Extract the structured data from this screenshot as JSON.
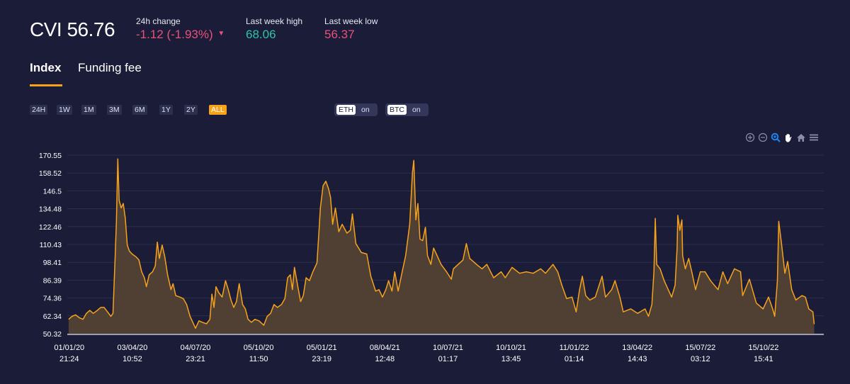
{
  "header": {
    "cvi_label": "CVI",
    "cvi_value": "56.76",
    "change_label": "24h change",
    "change_value": "-1.12 (-1.93%)",
    "change_direction": "down",
    "high_label": "Last week high",
    "high_value": "68.06",
    "low_label": "Last week low",
    "low_value": "56.37"
  },
  "colors": {
    "background": "#1b1c38",
    "accent": "#f7a21b",
    "negative": "#e8527a",
    "positive": "#2ec4a6",
    "area_fill": "#4f4033"
  },
  "tabs": [
    {
      "label": "Index",
      "active": true
    },
    {
      "label": "Funding fee",
      "active": false
    }
  ],
  "ranges": [
    {
      "label": "24H",
      "active": false
    },
    {
      "label": "1W",
      "active": false
    },
    {
      "label": "1M",
      "active": false
    },
    {
      "label": "3M",
      "active": false
    },
    {
      "label": "6M",
      "active": false
    },
    {
      "label": "1Y",
      "active": false
    },
    {
      "label": "2Y",
      "active": false
    },
    {
      "label": "ALL",
      "active": true
    }
  ],
  "toggles": [
    {
      "label": "ETH",
      "state": "on"
    },
    {
      "label": "BTC",
      "state": "on"
    }
  ],
  "toolbar": [
    "zoom-in-icon",
    "zoom-out-icon",
    "zoom-selection-icon",
    "pan-hand-icon",
    "home-reset-icon",
    "menu-icon"
  ],
  "chart_data": {
    "type": "area",
    "title": "",
    "xlabel": "",
    "ylabel": "",
    "grid": true,
    "ylim": [
      50.32,
      170.55
    ],
    "xlim": [
      "2019-12-30",
      "2023-01-12"
    ],
    "y_ticks": [
      "170.55",
      "158.52",
      "146.5",
      "134.48",
      "122.46",
      "110.43",
      "98.41",
      "86.39",
      "74.36",
      "62.34",
      "50.32"
    ],
    "x_ticks": [
      {
        "date": "01/01/20",
        "time": "21:24"
      },
      {
        "date": "03/04/20",
        "time": "10:52"
      },
      {
        "date": "04/07/20",
        "time": "23:21"
      },
      {
        "date": "05/10/20",
        "time": "11:50"
      },
      {
        "date": "05/01/21",
        "time": "23:19"
      },
      {
        "date": "08/04/21",
        "time": "12:48"
      },
      {
        "date": "10/07/21",
        "time": "01:17"
      },
      {
        "date": "10/10/21",
        "time": "13:45"
      },
      {
        "date": "11/01/22",
        "time": "01:14"
      },
      {
        "date": "13/04/22",
        "time": "14:43"
      },
      {
        "date": "15/07/22",
        "time": "03:12"
      },
      {
        "date": "15/10/22",
        "time": "15:41"
      }
    ],
    "series": [
      {
        "points": [
          [
            "2020-01-01",
            60
          ],
          [
            "2020-01-06",
            62
          ],
          [
            "2020-01-11",
            63
          ],
          [
            "2020-01-17",
            61
          ],
          [
            "2020-01-22",
            60
          ],
          [
            "2020-01-27",
            64
          ],
          [
            "2020-02-01",
            66
          ],
          [
            "2020-02-06",
            64
          ],
          [
            "2020-02-12",
            66
          ],
          [
            "2020-02-17",
            68
          ],
          [
            "2020-02-22",
            68
          ],
          [
            "2020-02-27",
            65
          ],
          [
            "2020-03-03",
            62
          ],
          [
            "2020-03-06",
            64
          ],
          [
            "2020-03-09",
            100
          ],
          [
            "2020-03-11",
            125
          ],
          [
            "2020-03-13",
            168
          ],
          [
            "2020-03-15",
            140
          ],
          [
            "2020-03-18",
            135
          ],
          [
            "2020-03-21",
            138
          ],
          [
            "2020-03-24",
            128
          ],
          [
            "2020-03-27",
            110
          ],
          [
            "2020-03-30",
            106
          ],
          [
            "2020-04-03",
            104
          ],
          [
            "2020-04-09",
            102
          ],
          [
            "2020-04-13",
            100
          ],
          [
            "2020-04-17",
            92
          ],
          [
            "2020-04-21",
            88
          ],
          [
            "2020-04-24",
            82
          ],
          [
            "2020-04-28",
            90
          ],
          [
            "2020-05-03",
            92
          ],
          [
            "2020-05-07",
            96
          ],
          [
            "2020-05-10",
            112
          ],
          [
            "2020-05-13",
            101
          ],
          [
            "2020-05-17",
            110
          ],
          [
            "2020-05-21",
            102
          ],
          [
            "2020-05-25",
            90
          ],
          [
            "2020-05-30",
            80
          ],
          [
            "2020-06-02",
            84
          ],
          [
            "2020-06-06",
            76
          ],
          [
            "2020-06-12",
            75
          ],
          [
            "2020-06-17",
            74
          ],
          [
            "2020-06-22",
            70
          ],
          [
            "2020-06-27",
            62
          ],
          [
            "2020-07-01",
            58
          ],
          [
            "2020-07-05",
            54
          ],
          [
            "2020-07-10",
            59
          ],
          [
            "2020-07-15",
            58
          ],
          [
            "2020-07-21",
            57
          ],
          [
            "2020-07-26",
            60
          ],
          [
            "2020-07-29",
            77
          ],
          [
            "2020-08-01",
            68
          ],
          [
            "2020-08-04",
            82
          ],
          [
            "2020-08-08",
            78
          ],
          [
            "2020-08-13",
            75
          ],
          [
            "2020-08-18",
            86
          ],
          [
            "2020-08-22",
            80
          ],
          [
            "2020-08-26",
            73
          ],
          [
            "2020-08-30",
            68
          ],
          [
            "2020-09-03",
            72
          ],
          [
            "2020-09-07",
            84
          ],
          [
            "2020-09-12",
            70
          ],
          [
            "2020-09-16",
            67
          ],
          [
            "2020-09-20",
            60
          ],
          [
            "2020-09-25",
            58
          ],
          [
            "2020-09-30",
            60
          ],
          [
            "2020-10-06",
            59
          ],
          [
            "2020-10-13",
            56
          ],
          [
            "2020-10-18",
            62
          ],
          [
            "2020-10-23",
            64
          ],
          [
            "2020-10-28",
            70
          ],
          [
            "2020-11-02",
            68
          ],
          [
            "2020-11-08",
            70
          ],
          [
            "2020-11-13",
            74
          ],
          [
            "2020-11-17",
            88
          ],
          [
            "2020-11-21",
            90
          ],
          [
            "2020-11-24",
            80
          ],
          [
            "2020-11-27",
            95
          ],
          [
            "2020-12-02",
            82
          ],
          [
            "2020-12-06",
            72
          ],
          [
            "2020-12-10",
            76
          ],
          [
            "2020-12-14",
            88
          ],
          [
            "2020-12-19",
            86
          ],
          [
            "2020-12-24",
            92
          ],
          [
            "2020-12-30",
            98
          ],
          [
            "2021-01-02",
            120
          ],
          [
            "2021-01-04",
            135
          ],
          [
            "2021-01-08",
            150
          ],
          [
            "2021-01-12",
            153
          ],
          [
            "2021-01-16",
            148
          ],
          [
            "2021-01-19",
            142
          ],
          [
            "2021-01-22",
            124
          ],
          [
            "2021-01-26",
            135
          ],
          [
            "2021-01-31",
            119
          ],
          [
            "2021-02-05",
            124
          ],
          [
            "2021-02-12",
            118
          ],
          [
            "2021-02-17",
            120
          ],
          [
            "2021-02-20",
            131
          ],
          [
            "2021-02-25",
            111
          ],
          [
            "2021-03-05",
            105
          ],
          [
            "2021-03-13",
            104
          ],
          [
            "2021-03-19",
            89
          ],
          [
            "2021-03-26",
            79
          ],
          [
            "2021-03-31",
            80
          ],
          [
            "2021-04-05",
            75
          ],
          [
            "2021-04-10",
            80
          ],
          [
            "2021-04-14",
            86
          ],
          [
            "2021-04-19",
            79
          ],
          [
            "2021-04-23",
            92
          ],
          [
            "2021-04-28",
            79
          ],
          [
            "2021-05-04",
            92
          ],
          [
            "2021-05-09",
            103
          ],
          [
            "2021-05-15",
            124
          ],
          [
            "2021-05-19",
            159
          ],
          [
            "2021-05-21",
            167
          ],
          [
            "2021-05-24",
            127
          ],
          [
            "2021-05-27",
            138
          ],
          [
            "2021-05-30",
            114
          ],
          [
            "2021-06-03",
            113
          ],
          [
            "2021-06-07",
            122
          ],
          [
            "2021-06-10",
            103
          ],
          [
            "2021-06-15",
            97
          ],
          [
            "2021-06-19",
            108
          ],
          [
            "2021-06-24",
            103
          ],
          [
            "2021-06-30",
            97
          ],
          [
            "2021-07-08",
            92
          ],
          [
            "2021-07-15",
            87
          ],
          [
            "2021-07-18",
            94
          ],
          [
            "2021-07-25",
            97
          ],
          [
            "2021-08-01",
            100
          ],
          [
            "2021-08-06",
            111
          ],
          [
            "2021-08-11",
            101
          ],
          [
            "2021-08-21",
            97
          ],
          [
            "2021-08-29",
            94
          ],
          [
            "2021-09-05",
            97
          ],
          [
            "2021-09-15",
            88
          ],
          [
            "2021-09-26",
            92
          ],
          [
            "2021-10-02",
            88
          ],
          [
            "2021-10-12",
            95
          ],
          [
            "2021-10-23",
            91
          ],
          [
            "2021-11-02",
            92
          ],
          [
            "2021-11-12",
            91
          ],
          [
            "2021-11-23",
            94
          ],
          [
            "2021-11-30",
            91
          ],
          [
            "2021-12-11",
            97
          ],
          [
            "2021-12-18",
            92
          ],
          [
            "2021-12-24",
            83
          ],
          [
            "2021-12-31",
            74
          ],
          [
            "2022-01-08",
            75
          ],
          [
            "2022-01-14",
            65
          ],
          [
            "2022-01-19",
            80
          ],
          [
            "2022-01-23",
            89
          ],
          [
            "2022-01-28",
            76
          ],
          [
            "2022-02-03",
            73
          ],
          [
            "2022-02-11",
            75
          ],
          [
            "2022-02-21",
            89
          ],
          [
            "2022-02-26",
            75
          ],
          [
            "2022-03-07",
            80
          ],
          [
            "2022-03-12",
            86
          ],
          [
            "2022-03-19",
            75
          ],
          [
            "2022-03-24",
            65
          ],
          [
            "2022-04-04",
            67
          ],
          [
            "2022-04-14",
            64
          ],
          [
            "2022-04-25",
            67
          ],
          [
            "2022-04-30",
            62
          ],
          [
            "2022-05-05",
            70
          ],
          [
            "2022-05-08",
            92
          ],
          [
            "2022-05-10",
            128
          ],
          [
            "2022-05-12",
            97
          ],
          [
            "2022-05-17",
            94
          ],
          [
            "2022-05-23",
            86
          ],
          [
            "2022-05-29",
            80
          ],
          [
            "2022-06-03",
            75
          ],
          [
            "2022-06-08",
            83
          ],
          [
            "2022-06-11",
            108
          ],
          [
            "2022-06-12",
            130
          ],
          [
            "2022-06-15",
            120
          ],
          [
            "2022-06-18",
            127
          ],
          [
            "2022-06-19",
            103
          ],
          [
            "2022-06-23",
            94
          ],
          [
            "2022-06-28",
            101
          ],
          [
            "2022-07-03",
            91
          ],
          [
            "2022-07-08",
            80
          ],
          [
            "2022-07-15",
            92
          ],
          [
            "2022-07-22",
            92
          ],
          [
            "2022-07-30",
            86
          ],
          [
            "2022-08-10",
            80
          ],
          [
            "2022-08-17",
            92
          ],
          [
            "2022-08-24",
            84
          ],
          [
            "2022-09-03",
            94
          ],
          [
            "2022-09-12",
            92
          ],
          [
            "2022-09-15",
            76
          ],
          [
            "2022-09-25",
            87
          ],
          [
            "2022-10-05",
            71
          ],
          [
            "2022-10-15",
            67
          ],
          [
            "2022-10-23",
            75
          ],
          [
            "2022-10-29",
            67
          ],
          [
            "2022-11-01",
            62
          ],
          [
            "2022-11-05",
            86
          ],
          [
            "2022-11-07",
            126
          ],
          [
            "2022-11-11",
            111
          ],
          [
            "2022-11-16",
            91
          ],
          [
            "2022-11-20",
            99
          ],
          [
            "2022-11-26",
            80
          ],
          [
            "2022-12-02",
            73
          ],
          [
            "2022-12-11",
            76
          ],
          [
            "2022-12-16",
            75
          ],
          [
            "2022-12-21",
            67
          ],
          [
            "2022-12-27",
            65
          ],
          [
            "2022-12-29",
            56.76
          ]
        ]
      }
    ]
  }
}
